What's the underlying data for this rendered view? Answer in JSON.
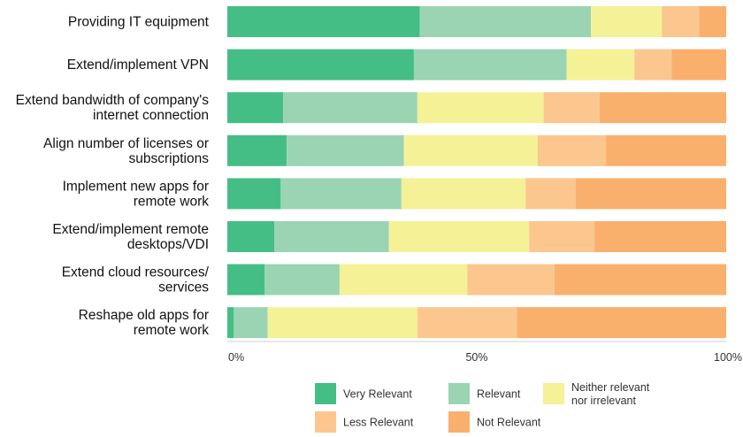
{
  "chart_data": {
    "type": "bar",
    "orientation": "horizontal",
    "stacked": true,
    "categories": [
      [
        "Providing IT equipment"
      ],
      [
        "Extend/implement VPN"
      ],
      [
        "Extend bandwidth of company's",
        "internet connection"
      ],
      [
        "Align number of licenses or",
        "subscriptions"
      ],
      [
        "Implement new apps for",
        "remote work"
      ],
      [
        "Extend/implement remote",
        "desktops/VDI"
      ],
      [
        "Extend cloud resources/",
        "services"
      ],
      [
        "Reshape old apps for",
        "remote work"
      ]
    ],
    "series": [
      {
        "name": "Very Relevant",
        "color": "#45be86",
        "values": [
          38.6,
          37.4,
          11.2,
          11.9,
          10.7,
          9.4,
          7.5,
          1.3
        ]
      },
      {
        "name": "Relevant",
        "color": "#9bd4b3",
        "values": [
          34.3,
          30.6,
          26.9,
          23.5,
          24.2,
          23.0,
          15.0,
          6.8
        ]
      },
      {
        "name": "Neither relevant\nnor irrelevant",
        "color": "#f5f197",
        "values": [
          14.2,
          13.6,
          25.3,
          26.8,
          24.9,
          28.1,
          25.6,
          30.0
        ]
      },
      {
        "name": "Less Relevant",
        "color": "#fbc78e",
        "values": [
          7.5,
          7.5,
          11.2,
          13.7,
          10.0,
          13.1,
          17.5,
          19.9
        ]
      },
      {
        "name": "Not Relevant",
        "color": "#f9b06d",
        "values": [
          5.4,
          10.9,
          25.4,
          24.1,
          30.2,
          26.4,
          34.4,
          42.0
        ]
      }
    ],
    "xlim": [
      0,
      100
    ],
    "x_ticks": [
      "0%",
      "50%",
      "100%"
    ],
    "x_tick_values": [
      0,
      50,
      100
    ],
    "grid": false,
    "legend_position": "bottom"
  }
}
